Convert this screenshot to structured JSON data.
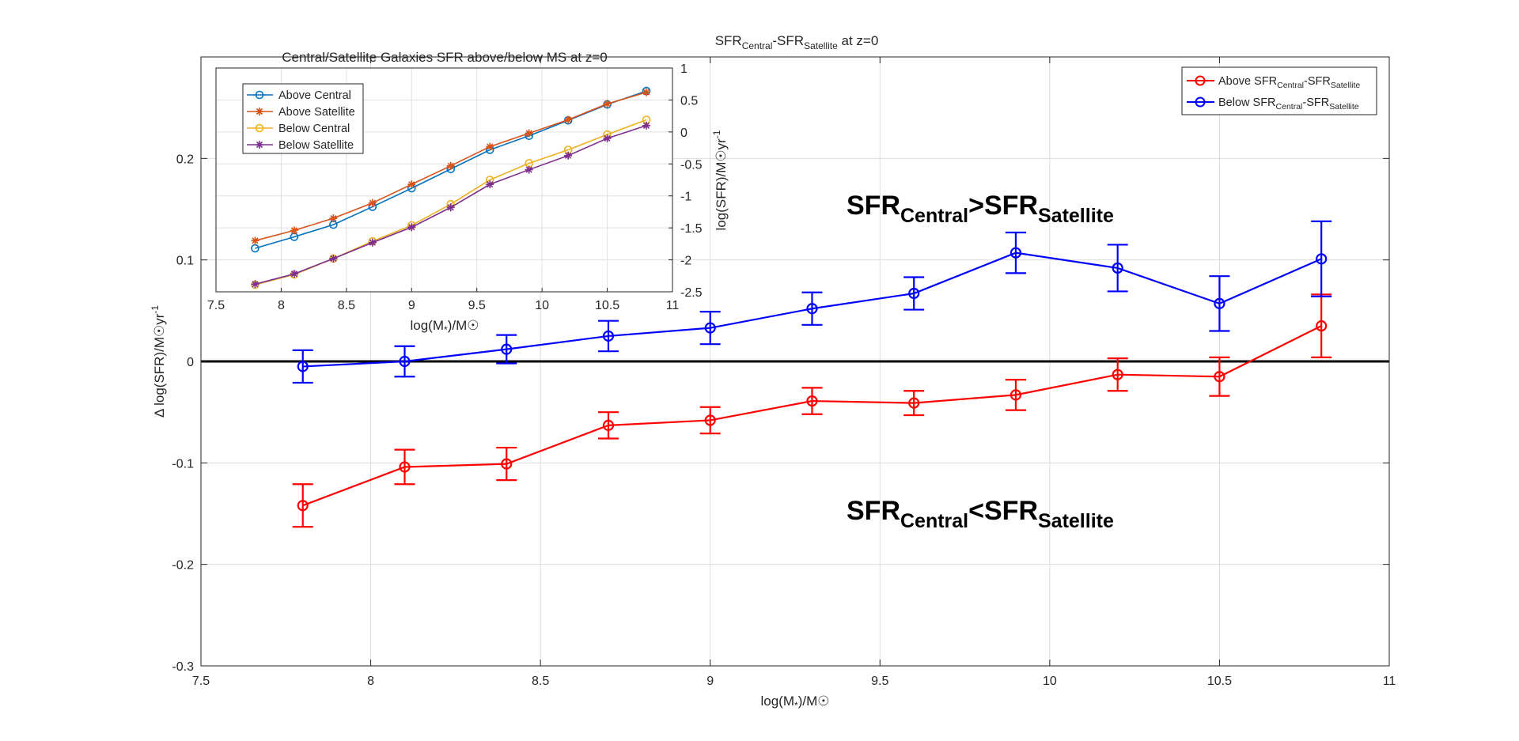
{
  "main_chart": {
    "title": {
      "pre": "SFR",
      "sub1": "Central",
      "mid": "-SFR",
      "sub2": "Satellite",
      "post": " at z=0"
    },
    "xlabel": {
      "pre": "log(M",
      "sub": "*",
      "post": ")/M☉"
    },
    "ylabel": {
      "pre": "Δ log(SFR)/M☉yr",
      "sup": "-1"
    },
    "xlim": [
      7.5,
      11
    ],
    "ylim": [
      -0.3,
      0.3
    ],
    "xticks": [
      "7.5",
      "8",
      "8.5",
      "9",
      "9.5",
      "10",
      "10.5",
      "11"
    ],
    "yticks": [
      "-0.3",
      "-0.2",
      "-0.1",
      "0",
      "0.1",
      "0.2"
    ],
    "zero_line": 0,
    "annotations": [
      {
        "pre": "SFR",
        "sub1": "Central",
        "op": ">",
        "mid": "SFR",
        "sub2": "Satellite"
      },
      {
        "pre": "SFR",
        "sub1": "Central",
        "op": "<",
        "mid": "SFR",
        "sub2": "Satellite"
      }
    ],
    "legend_placement": "top-right",
    "grid": true
  },
  "inset_chart": {
    "title": "Central/Satellite Galaxies SFR above/below MS at z=0",
    "xlabel": {
      "pre": "log(M",
      "sub": "*",
      "post": ")/M☉"
    },
    "ylabel": {
      "pre": "log(SFR)/M☉yr",
      "sup": "-1"
    },
    "xlim": [
      7.5,
      11
    ],
    "ylim": [
      -2.5,
      1
    ],
    "xticks": [
      "7.5",
      "8",
      "8.5",
      "9",
      "9.5",
      "10",
      "10.5",
      "11"
    ],
    "yticks": [
      "-2.5",
      "-2",
      "-1.5",
      "-1",
      "-0.5",
      "0",
      "0.5",
      "1"
    ],
    "legend_placement": "top-left",
    "grid": true
  },
  "chart_data": [
    {
      "type": "line",
      "title": "SFRCentral-SFRSatellite at z=0",
      "xlabel": "log(M*)/M☉",
      "ylabel": "Δ log(SFR)/M☉yr-1",
      "xlim": [
        7.5,
        11
      ],
      "ylim": [
        -0.3,
        0.3
      ],
      "grid": true,
      "legend": "top-right",
      "x": [
        7.8,
        8.1,
        8.4,
        8.7,
        9.0,
        9.3,
        9.6,
        9.9,
        10.2,
        10.5,
        10.8
      ],
      "series": [
        {
          "name": "Above SFRCentral-SFRSatellite",
          "legend": {
            "pre": "Above SFR",
            "sub1": "Central",
            "mid": "-SFR",
            "sub2": "Satellite"
          },
          "color": "#ff0000",
          "y": [
            -0.142,
            -0.104,
            -0.101,
            -0.063,
            -0.058,
            -0.039,
            -0.041,
            -0.033,
            -0.013,
            -0.015,
            0.035
          ],
          "err": [
            0.021,
            0.017,
            0.016,
            0.013,
            0.013,
            0.013,
            0.012,
            0.015,
            0.016,
            0.019,
            0.031
          ]
        },
        {
          "name": "Below SFRCentral-SFRSatellite",
          "legend": {
            "pre": "Below SFR",
            "sub1": "Central",
            "mid": "-SFR",
            "sub2": "Satellite"
          },
          "color": "#0000ff",
          "y": [
            -0.005,
            0.0,
            0.012,
            0.025,
            0.033,
            0.052,
            0.067,
            0.107,
            0.092,
            0.057,
            0.101
          ],
          "err": [
            0.016,
            0.015,
            0.014,
            0.015,
            0.016,
            0.016,
            0.016,
            0.02,
            0.023,
            0.027,
            0.037
          ]
        }
      ]
    },
    {
      "type": "line",
      "title": "Central/Satellite Galaxies SFR above/below MS at z=0",
      "xlabel": "log(M*)/M☉",
      "ylabel": "log(SFR)/M☉yr-1",
      "xlim": [
        7.5,
        11
      ],
      "ylim": [
        -2.5,
        1
      ],
      "grid": true,
      "legend": "top-left",
      "x": [
        7.8,
        8.1,
        8.4,
        8.7,
        9.0,
        9.3,
        9.6,
        9.9,
        10.2,
        10.5,
        10.8
      ],
      "series": [
        {
          "name": "Above Central",
          "color": "#0072bd",
          "marker": "o",
          "y": [
            -1.82,
            -1.64,
            -1.45,
            -1.17,
            -0.88,
            -0.58,
            -0.28,
            -0.06,
            0.18,
            0.43,
            0.64
          ]
        },
        {
          "name": "Above Satellite",
          "color": "#d95319",
          "marker": "*",
          "y": [
            -1.7,
            -1.54,
            -1.35,
            -1.11,
            -0.82,
            -0.53,
            -0.23,
            -0.02,
            0.19,
            0.44,
            0.62
          ]
        },
        {
          "name": "Below Central",
          "color": "#edb120",
          "marker": "o",
          "y": [
            -2.39,
            -2.23,
            -1.98,
            -1.71,
            -1.46,
            -1.13,
            -0.75,
            -0.49,
            -0.28,
            -0.04,
            0.19
          ]
        },
        {
          "name": "Below Satellite",
          "color": "#7e2f8e",
          "marker": "*",
          "y": [
            -2.38,
            -2.22,
            -1.98,
            -1.73,
            -1.49,
            -1.18,
            -0.82,
            -0.59,
            -0.37,
            -0.1,
            0.1
          ]
        }
      ]
    }
  ]
}
